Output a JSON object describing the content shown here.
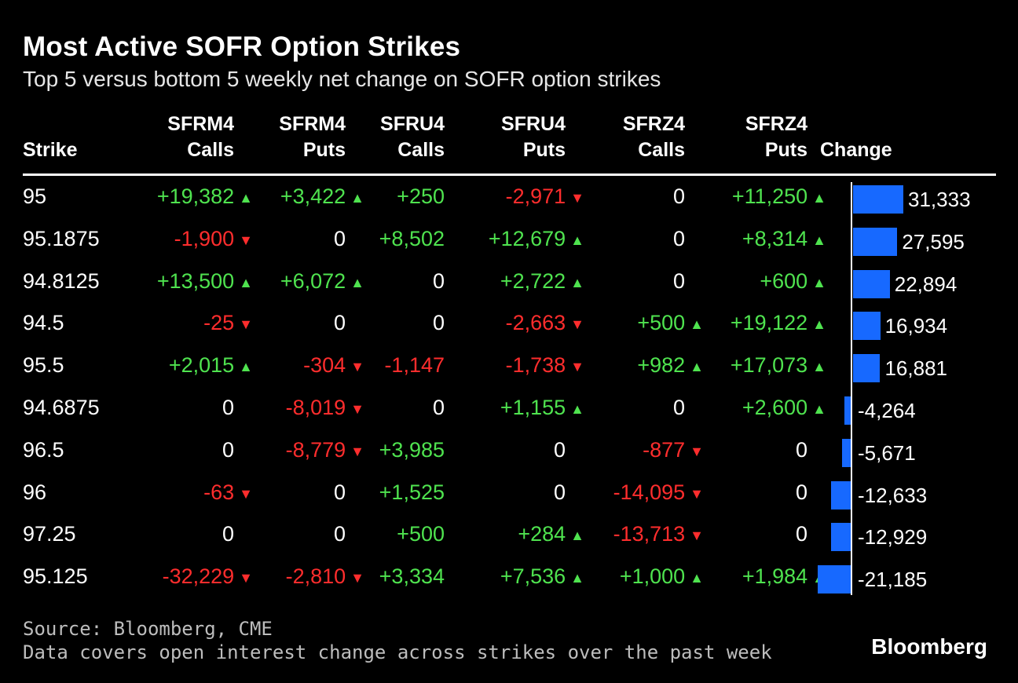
{
  "header": {
    "title": "Most Active SOFR Option Strikes",
    "subtitle": "Top 5 versus bottom 5 weekly net change on SOFR option strikes"
  },
  "columns": [
    {
      "line1": "",
      "line2": "Strike"
    },
    {
      "line1": "SFRM4",
      "line2": "Calls"
    },
    {
      "line1": "SFRM4",
      "line2": "Puts"
    },
    {
      "line1": "SFRU4",
      "line2": "Calls"
    },
    {
      "line1": "SFRU4",
      "line2": "Puts"
    },
    {
      "line1": "SFRZ4",
      "line2": "Calls"
    },
    {
      "line1": "SFRZ4",
      "line2": "Puts"
    },
    {
      "line1": "",
      "line2": "Change"
    }
  ],
  "colors": {
    "positive": "#4fe34f",
    "negative": "#ff2d2d",
    "bar": "#1769ff",
    "background": "#000000"
  },
  "chart_data": {
    "type": "table",
    "rows": [
      {
        "strike": "95",
        "values": [
          "+19,382",
          "+3,422",
          "+250",
          "-2,971",
          "0",
          "+11,250"
        ],
        "change": 31333,
        "change_label": "31,333"
      },
      {
        "strike": "95.1875",
        "values": [
          "-1,900",
          "0",
          "+8,502",
          "+12,679",
          "0",
          "+8,314"
        ],
        "change": 27595,
        "change_label": "27,595"
      },
      {
        "strike": "94.8125",
        "values": [
          "+13,500",
          "+6,072",
          "0",
          "+2,722",
          "0",
          "+600"
        ],
        "change": 22894,
        "change_label": "22,894"
      },
      {
        "strike": "94.5",
        "values": [
          "-25",
          "0",
          "0",
          "-2,663",
          "+500",
          "+19,122"
        ],
        "change": 16934,
        "change_label": "16,934"
      },
      {
        "strike": "95.5",
        "values": [
          "+2,015",
          "-304",
          "-1,147",
          "-1,738",
          "+982",
          "+17,073"
        ],
        "change": 16881,
        "change_label": "16,881"
      },
      {
        "strike": "94.6875",
        "values": [
          "0",
          "-8,019",
          "0",
          "+1,155",
          "0",
          "+2,600"
        ],
        "change": -4264,
        "change_label": "-4,264"
      },
      {
        "strike": "96.5",
        "values": [
          "0",
          "-8,779",
          "+3,985",
          "0",
          "-877",
          "0"
        ],
        "change": -5671,
        "change_label": "-5,671"
      },
      {
        "strike": "96",
        "values": [
          "-63",
          "0",
          "+1,525",
          "0",
          "-14,095",
          "0"
        ],
        "change": -12633,
        "change_label": "-12,633"
      },
      {
        "strike": "97.25",
        "values": [
          "0",
          "0",
          "+500",
          "+284",
          "-13,713",
          "0"
        ],
        "change": -12929,
        "change_label": "-12,929"
      },
      {
        "strike": "95.125",
        "values": [
          "-32,229",
          "-2,810",
          "+3,334",
          "+7,536",
          "+1,000",
          "+1,984"
        ],
        "change": -21185,
        "change_label": "-21,185"
      }
    ],
    "arrows": {
      "up": "▲",
      "down": "▼"
    }
  },
  "footer": {
    "source": "Source: Bloomberg, CME",
    "note": "Data covers open interest change across strikes over the past week",
    "brand": "Bloomberg"
  }
}
